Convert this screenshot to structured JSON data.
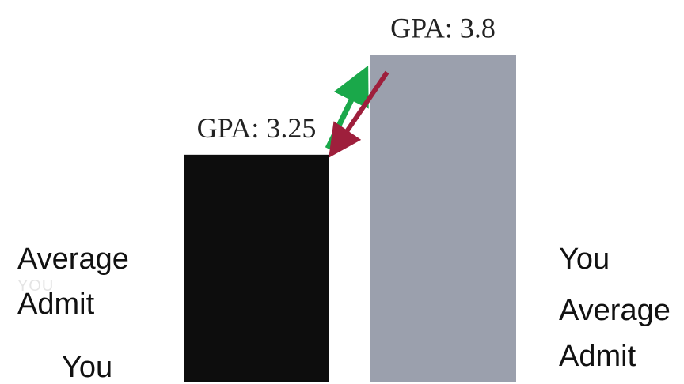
{
  "chart_data": {
    "type": "bar",
    "title": "",
    "xlabel": "",
    "ylabel": "",
    "ylim": [
      2.0,
      3.85
    ],
    "grid": false,
    "bars": [
      {
        "id": "left",
        "value": 3.25,
        "label": "GPA: 3.25",
        "color": "#0d0d0d"
      },
      {
        "id": "right",
        "value": 3.8,
        "label": "GPA: 3.8",
        "color": "#9ba0ad"
      }
    ],
    "arrows": [
      {
        "color": "#1aa84a",
        "direction": "up",
        "from": "left",
        "to": "right"
      },
      {
        "color": "#9e1f3c",
        "direction": "down",
        "from": "right",
        "to": "left"
      }
    ]
  },
  "labels": {
    "left_average": "Average",
    "left_admit": "Admit",
    "left_you": "You",
    "left_ghost": "YOU",
    "right_you": "You",
    "right_average": "Average",
    "right_admit": "Admit"
  }
}
